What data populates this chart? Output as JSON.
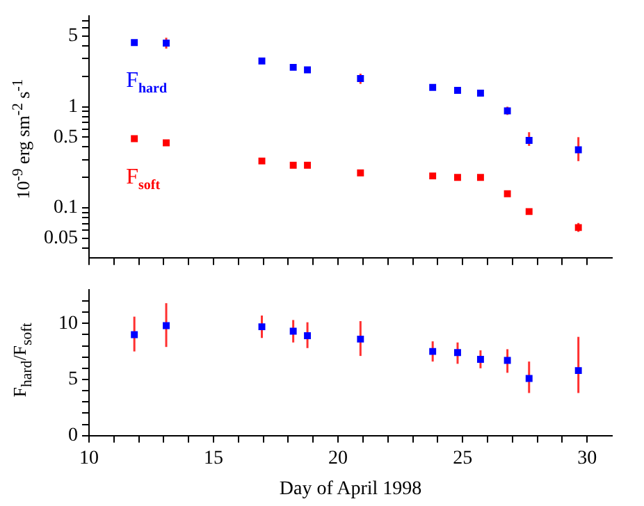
{
  "chart_data": [
    {
      "type": "scatter",
      "ylabel": "10$^{-9}$ erg sm$^{-2}$ s$^{-1}$",
      "log": "y",
      "xlim": [
        10,
        31
      ],
      "ylim": [
        0.032,
        7.9
      ],
      "xticks": [
        10,
        {
          "value": 11,
          "label": null
        },
        {
          "value": 12,
          "label": null
        },
        {
          "value": 13,
          "label": null
        },
        {
          "value": 14,
          "label": null
        },
        15,
        {
          "value": 16,
          "label": null
        },
        {
          "value": 17,
          "label": null
        },
        {
          "value": 18,
          "label": null
        },
        {
          "value": 19,
          "label": null
        },
        20,
        {
          "value": 21,
          "label": null
        },
        {
          "value": 22,
          "label": null
        },
        {
          "value": 23,
          "label": null
        },
        {
          "value": 24,
          "label": null
        },
        25,
        {
          "value": 26,
          "label": null
        },
        {
          "value": 27,
          "label": null
        },
        {
          "value": 28,
          "label": null
        },
        {
          "value": 29,
          "label": null
        },
        30
      ],
      "yticks": [
        {
          "value": 0.04,
          "label": null
        },
        0.05,
        {
          "value": 0.06,
          "label": null
        },
        {
          "value": 0.07,
          "label": null
        },
        {
          "value": 0.08,
          "label": null
        },
        {
          "value": 0.09,
          "label": null
        },
        0.1,
        {
          "value": 0.2,
          "label": null
        },
        {
          "value": 0.3,
          "label": null
        },
        {
          "value": 0.4,
          "label": null
        },
        0.5,
        {
          "value": 0.6,
          "label": null
        },
        {
          "value": 0.7,
          "label": null
        },
        {
          "value": 0.8,
          "label": null
        },
        {
          "value": 0.9,
          "label": null
        },
        1,
        {
          "value": 2,
          "label": null
        },
        {
          "value": 3,
          "label": null
        },
        {
          "value": 4,
          "label": null
        },
        5,
        {
          "value": 6,
          "label": null
        },
        {
          "value": 7,
          "label": null
        }
      ],
      "tick_labels": "y",
      "grid": false,
      "legend": false,
      "marker": "square",
      "series": [
        {
          "name": "F$_{hard}$",
          "color": "#0000ff",
          "x": [
            11.82,
            13.1,
            16.94,
            18.2,
            18.77,
            20.9,
            23.8,
            24.8,
            25.72,
            26.8,
            27.67,
            29.65
          ],
          "values": [
            4.3,
            4.25,
            2.83,
            2.45,
            2.31,
            1.9,
            1.55,
            1.45,
            1.36,
            0.91,
            0.465,
            0.375
          ],
          "errors": [
            null,
            [
              3.75,
              4.8
            ],
            null,
            null,
            null,
            [
              1.68,
              2.12
            ],
            null,
            null,
            null,
            [
              0.83,
              1.0
            ],
            [
              0.41,
              0.56
            ],
            [
              0.29,
              0.5
            ]
          ]
        },
        {
          "name": "F$_{soft}$",
          "color": "#ff0000",
          "x": [
            11.82,
            13.1,
            16.94,
            18.2,
            18.77,
            20.9,
            23.8,
            24.8,
            25.72,
            26.8,
            27.67,
            29.65
          ],
          "values": [
            0.483,
            0.44,
            0.291,
            0.264,
            0.264,
            0.222,
            0.207,
            0.2,
            0.2,
            0.138,
            0.092,
            0.064
          ],
          "errors": [
            null,
            [
              0.41,
              0.47
            ],
            null,
            null,
            null,
            null,
            null,
            null,
            null,
            null,
            null,
            [
              0.058,
              0.071
            ]
          ]
        }
      ]
    },
    {
      "type": "scatter",
      "xlabel": "Day of April 1998",
      "ylabel": "F$_{hard}$/F$_{soft}$",
      "xlim": [
        10,
        31
      ],
      "ylim": [
        0,
        13
      ],
      "xticks": [
        10,
        {
          "value": 11,
          "label": null
        },
        {
          "value": 12,
          "label": null
        },
        {
          "value": 13,
          "label": null
        },
        {
          "value": 14,
          "label": null
        },
        15,
        {
          "value": 16,
          "label": null
        },
        {
          "value": 17,
          "label": null
        },
        {
          "value": 18,
          "label": null
        },
        {
          "value": 19,
          "label": null
        },
        20,
        {
          "value": 21,
          "label": null
        },
        {
          "value": 22,
          "label": null
        },
        {
          "value": 23,
          "label": null
        },
        {
          "value": 24,
          "label": null
        },
        25,
        {
          "value": 26,
          "label": null
        },
        {
          "value": 27,
          "label": null
        },
        {
          "value": 28,
          "label": null
        },
        {
          "value": 29,
          "label": null
        },
        30
      ],
      "yticks": [
        0,
        {
          "value": 1,
          "label": null
        },
        {
          "value": 2,
          "label": null
        },
        {
          "value": 3,
          "label": null
        },
        {
          "value": 4,
          "label": null
        },
        5,
        {
          "value": 6,
          "label": null
        },
        {
          "value": 7,
          "label": null
        },
        {
          "value": 8,
          "label": null
        },
        {
          "value": 9,
          "label": null
        },
        10,
        {
          "value": 11,
          "label": null
        },
        {
          "value": 12,
          "label": null
        }
      ],
      "grid": false,
      "legend": false,
      "marker": "square",
      "series": [
        {
          "color": "#0000ff",
          "x": [
            11.82,
            13.1,
            16.94,
            18.2,
            18.77,
            20.9,
            23.8,
            24.8,
            25.72,
            26.8,
            27.67,
            29.65
          ],
          "values": [
            9.0,
            9.8,
            9.7,
            9.3,
            8.9,
            8.6,
            7.5,
            7.4,
            6.8,
            6.7,
            5.1,
            5.8
          ],
          "errors": [
            [
              7.5,
              10.6
            ],
            [
              7.9,
              11.8
            ],
            [
              8.7,
              10.7
            ],
            [
              8.3,
              10.3
            ],
            [
              7.8,
              10.1
            ],
            [
              7.1,
              10.2
            ],
            [
              6.6,
              8.4
            ],
            [
              6.4,
              8.3
            ],
            [
              6.0,
              7.6
            ],
            [
              5.6,
              7.7
            ],
            [
              3.8,
              6.6
            ],
            [
              3.8,
              8.8
            ]
          ]
        }
      ]
    }
  ]
}
